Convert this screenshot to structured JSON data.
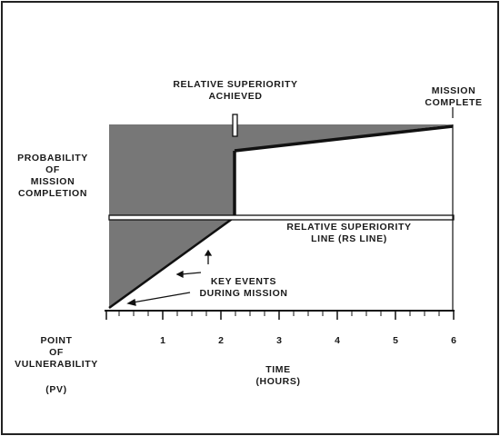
{
  "diagram": {
    "top_right_label": [
      "MISSION",
      "COMPLETE"
    ],
    "top_center_label": [
      "RELATIVE SUPERIORITY",
      "ACHIEVED"
    ],
    "y_axis_label": [
      "PROBABILITY",
      "OF",
      "MISSION",
      "COMPLETION"
    ],
    "rs_line_label": [
      "RELATIVE SUPERIORITY",
      "LINE (RS LINE)"
    ],
    "key_events_label": [
      "KEY EVENTS",
      "DURING MISSION"
    ],
    "pv_label": [
      "POINT",
      "OF",
      "VULNERABILITY",
      "(PV)"
    ],
    "x_axis_label": [
      "TIME",
      "(HOURS)"
    ],
    "x_ticks": [
      "1",
      "2",
      "3",
      "4",
      "5",
      "6"
    ],
    "colors": {
      "shade": "#777777",
      "ink": "#111111",
      "frame": "#222222"
    }
  }
}
